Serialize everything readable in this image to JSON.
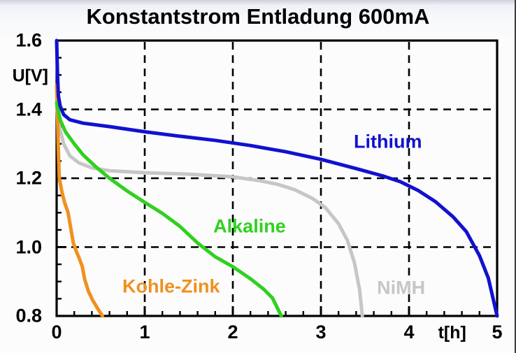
{
  "window": {
    "bg": "#f7f8fb",
    "right_border_color": "#3c3c3c",
    "axis_color": "#000000",
    "grid_color": "#000000"
  },
  "chart_data": {
    "type": "line",
    "title": "Konstantstrom Entladung 600mA",
    "xlabel": "t[h]",
    "ylabel": "U[V]",
    "xlim": [
      0,
      5
    ],
    "ylim": [
      0.8,
      1.6
    ],
    "x_ticks": [
      0,
      1,
      2,
      3,
      4,
      5
    ],
    "x_tick_labels": [
      "0",
      "1",
      "2",
      "3",
      "4",
      "5"
    ],
    "y_ticks": [
      1.6,
      1.4,
      1.2,
      1.0,
      0.8
    ],
    "y_tick_labels": [
      "1.6",
      "1.4",
      "1.2",
      "1.0",
      "0.8"
    ],
    "x_minor_step": 0.2,
    "y_minor_step": 0.05,
    "grid_x": [
      1,
      2,
      3,
      4
    ],
    "grid_y": [
      1.4,
      1.2,
      1.0
    ],
    "grid_style": "dashed",
    "legend_position": "inline-labels",
    "xlabel_pos": 4.49,
    "ylabel_pos": 1.497,
    "series": [
      {
        "name": "NiMH",
        "color": "#c6c6c6",
        "label_pos": [
          3.91,
          0.882
        ],
        "points": [
          [
            0,
            1.41
          ],
          [
            0.03,
            1.35
          ],
          [
            0.08,
            1.3
          ],
          [
            0.15,
            1.265
          ],
          [
            0.25,
            1.245
          ],
          [
            0.4,
            1.23
          ],
          [
            0.6,
            1.222
          ],
          [
            1.0,
            1.216
          ],
          [
            1.5,
            1.212
          ],
          [
            2.0,
            1.204
          ],
          [
            2.3,
            1.193
          ],
          [
            2.5,
            1.183
          ],
          [
            2.7,
            1.167
          ],
          [
            2.9,
            1.142
          ],
          [
            3.05,
            1.115
          ],
          [
            3.2,
            1.068
          ],
          [
            3.3,
            1.02
          ],
          [
            3.38,
            0.955
          ],
          [
            3.44,
            0.875
          ],
          [
            3.47,
            0.8
          ]
        ]
      },
      {
        "name": "Kohle-Zink",
        "color": "#f0911e",
        "label_pos": [
          1.3,
          0.885
        ],
        "points": [
          [
            0,
            1.47
          ],
          [
            0.01,
            1.38
          ],
          [
            0.02,
            1.28
          ],
          [
            0.03,
            1.2
          ],
          [
            0.06,
            1.16
          ],
          [
            0.09,
            1.13
          ],
          [
            0.13,
            1.1
          ],
          [
            0.16,
            1.055
          ],
          [
            0.19,
            1.012
          ],
          [
            0.22,
            0.99
          ],
          [
            0.26,
            0.965
          ],
          [
            0.29,
            0.945
          ],
          [
            0.32,
            0.905
          ],
          [
            0.36,
            0.872
          ],
          [
            0.41,
            0.845
          ],
          [
            0.47,
            0.82
          ],
          [
            0.52,
            0.8
          ]
        ]
      },
      {
        "name": "Alkaline",
        "color": "#2fd11f",
        "label_pos": [
          2.19,
          1.06
        ],
        "points": [
          [
            0,
            1.42
          ],
          [
            0.04,
            1.37
          ],
          [
            0.1,
            1.335
          ],
          [
            0.2,
            1.3
          ],
          [
            0.3,
            1.268
          ],
          [
            0.45,
            1.232
          ],
          [
            0.6,
            1.2
          ],
          [
            0.8,
            1.163
          ],
          [
            1.0,
            1.13
          ],
          [
            1.2,
            1.098
          ],
          [
            1.4,
            1.06
          ],
          [
            1.6,
            1.012
          ],
          [
            1.8,
            0.972
          ],
          [
            2.0,
            0.943
          ],
          [
            2.2,
            0.908
          ],
          [
            2.35,
            0.878
          ],
          [
            2.45,
            0.852
          ],
          [
            2.55,
            0.8
          ]
        ]
      },
      {
        "name": "Lithium",
        "color": "#1111d0",
        "label_pos": [
          3.76,
          1.305
        ],
        "points": [
          [
            0,
            1.6
          ],
          [
            0.01,
            1.5
          ],
          [
            0.02,
            1.44
          ],
          [
            0.04,
            1.41
          ],
          [
            0.08,
            1.385
          ],
          [
            0.15,
            1.37
          ],
          [
            0.3,
            1.36
          ],
          [
            0.6,
            1.35
          ],
          [
            1.0,
            1.335
          ],
          [
            1.4,
            1.322
          ],
          [
            1.8,
            1.31
          ],
          [
            2.2,
            1.295
          ],
          [
            2.6,
            1.277
          ],
          [
            3.0,
            1.255
          ],
          [
            3.4,
            1.228
          ],
          [
            3.7,
            1.207
          ],
          [
            3.9,
            1.19
          ],
          [
            4.1,
            1.165
          ],
          [
            4.3,
            1.132
          ],
          [
            4.5,
            1.088
          ],
          [
            4.65,
            1.045
          ],
          [
            4.8,
            0.975
          ],
          [
            4.9,
            0.91
          ],
          [
            5.0,
            0.8
          ]
        ]
      }
    ]
  }
}
